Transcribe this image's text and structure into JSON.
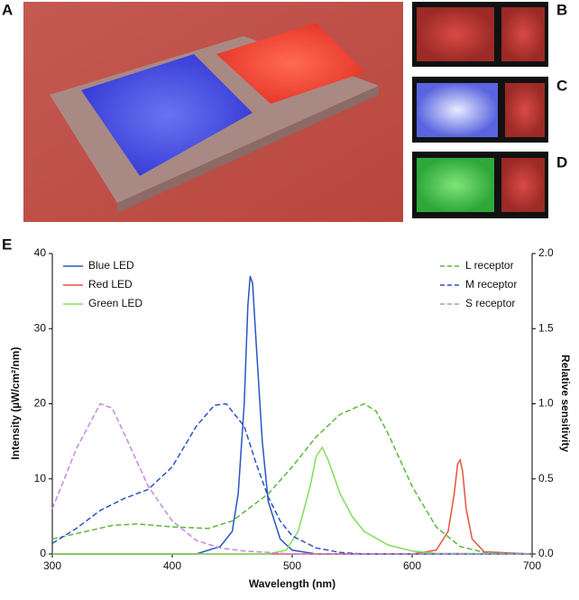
{
  "panels": {
    "labels": [
      "A",
      "B",
      "C",
      "D",
      "E"
    ]
  },
  "chart_data": {
    "type": "line",
    "xlabel": "Wavelength (nm)",
    "ylabel": "Intensity (µW/cm²/nm)",
    "y2label": "Relative sensitivity",
    "xlim": [
      300,
      700
    ],
    "xticks": [
      300,
      400,
      500,
      600,
      700
    ],
    "ylim": [
      0,
      40
    ],
    "yticks": [
      0,
      10,
      20,
      30,
      40
    ],
    "y2lim": [
      0,
      2
    ],
    "y2ticks": [
      {
        "value": 0,
        "label": "0.0"
      },
      0.5,
      {
        "value": 1,
        "label": "1.0"
      },
      1.5,
      {
        "value": 2,
        "label": "2.0"
      }
    ],
    "legend": "top",
    "series": [
      {
        "name": "Blue LED",
        "color": "#2a55c4",
        "dash": false,
        "x": [
          300,
          420,
          440,
          450,
          455,
          460,
          463,
          465,
          467,
          470,
          475,
          480,
          490,
          500,
          520,
          700
        ],
        "values": [
          0,
          0,
          1,
          3,
          8,
          20,
          33,
          37,
          36,
          28,
          15,
          7,
          2,
          0.5,
          0,
          0
        ]
      },
      {
        "name": "Red LED",
        "color": "#e5533a",
        "dash": false,
        "x": [
          300,
          600,
          620,
          630,
          635,
          638,
          640,
          642,
          645,
          650,
          660,
          700
        ],
        "values": [
          0,
          0,
          0.5,
          3,
          8,
          12,
          12.5,
          11,
          6,
          2,
          0.3,
          0
        ]
      },
      {
        "name": "Green LED",
        "color": "#7fe05c",
        "dash": false,
        "x": [
          300,
          480,
          495,
          505,
          515,
          520,
          525,
          530,
          540,
          550,
          560,
          580,
          600,
          620,
          700
        ],
        "values": [
          0,
          0,
          0.5,
          3,
          9,
          13,
          14.2,
          12.5,
          8,
          5,
          3,
          1.2,
          0.4,
          0.1,
          0
        ]
      },
      {
        "name": "L receptor",
        "color": "#5cb83c",
        "dash": true,
        "axis": "y2",
        "x": [
          300,
          350,
          370,
          400,
          430,
          450,
          480,
          500,
          520,
          540,
          560,
          570,
          580,
          600,
          620,
          640,
          660,
          700
        ],
        "values": [
          0.1,
          0.19,
          0.2,
          0.18,
          0.17,
          0.22,
          0.4,
          0.58,
          0.78,
          0.93,
          1.0,
          0.95,
          0.8,
          0.45,
          0.18,
          0.05,
          0.01,
          0
        ]
      },
      {
        "name": "M receptor",
        "color": "#2a55c4",
        "dash": true,
        "axis": "y2",
        "x": [
          300,
          320,
          340,
          360,
          380,
          400,
          420,
          435,
          445,
          460,
          470,
          480,
          490,
          500,
          520,
          540,
          560,
          700
        ],
        "values": [
          0.07,
          0.17,
          0.29,
          0.37,
          0.43,
          0.58,
          0.85,
          0.99,
          1.0,
          0.85,
          0.6,
          0.38,
          0.22,
          0.12,
          0.04,
          0.01,
          0,
          0
        ]
      },
      {
        "name": "S receptor",
        "color": "#c28ae0",
        "dash": true,
        "axis": "y2",
        "x": [
          300,
          320,
          340,
          350,
          360,
          380,
          400,
          420,
          440,
          460,
          480,
          500,
          700
        ],
        "values": [
          0.3,
          0.7,
          1.0,
          0.97,
          0.8,
          0.45,
          0.22,
          0.09,
          0.04,
          0.02,
          0.01,
          0,
          0
        ]
      }
    ]
  }
}
